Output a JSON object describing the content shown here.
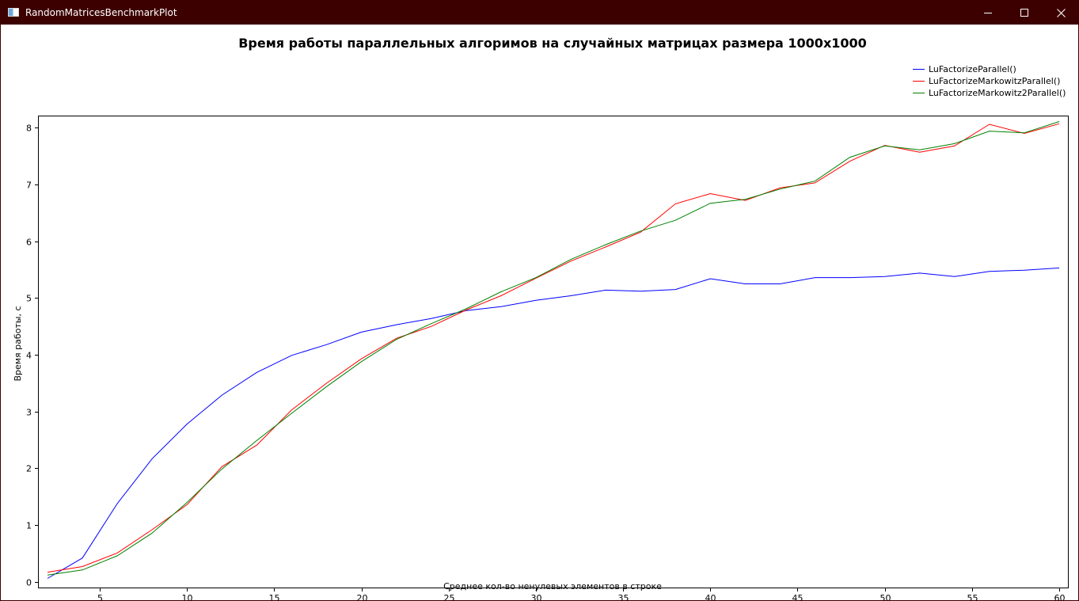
{
  "window": {
    "title": "RandomMatricesBenchmarkPlot",
    "icon": "app-window-icon",
    "controls": {
      "minimize_icon": "minimize-icon",
      "maximize_icon": "maximize-icon",
      "close_icon": "close-icon"
    },
    "titlebar_color": "#3d0000"
  },
  "chart_data": {
    "type": "line",
    "title": "Время работы параллельных алгоримов на случайных матрицах размера 1000x1000",
    "xlabel": "Среднее кол-во ненулевых элементов в строке",
    "ylabel": "Время работы, с",
    "xlim": [
      1.5,
      60.5
    ],
    "ylim": [
      -0.1,
      8.2
    ],
    "xticks": [
      5,
      10,
      15,
      20,
      25,
      30,
      35,
      40,
      45,
      50,
      55,
      60
    ],
    "yticks": [
      0,
      1,
      2,
      3,
      4,
      5,
      6,
      7,
      8
    ],
    "grid": false,
    "legend_position": "top-right",
    "x": [
      2,
      4,
      6,
      8,
      10,
      12,
      14,
      16,
      18,
      20,
      22,
      24,
      26,
      28,
      30,
      32,
      34,
      36,
      38,
      40,
      42,
      44,
      46,
      48,
      50,
      52,
      54,
      56,
      58,
      60
    ],
    "series": [
      {
        "name": "LuFactorizeParallel()",
        "color": "#0000ff",
        "values": [
          0.06,
          0.42,
          1.38,
          2.17,
          2.78,
          3.29,
          3.69,
          3.99,
          4.18,
          4.4,
          4.53,
          4.64,
          4.78,
          4.85,
          4.96,
          5.04,
          5.14,
          5.12,
          5.15,
          5.34,
          5.25,
          5.25,
          5.36,
          5.36,
          5.38,
          5.44,
          5.38,
          5.47,
          5.49,
          5.53
        ]
      },
      {
        "name": "LuFactorizeMarkowitzParallel()",
        "color": "#ff0000",
        "values": [
          0.17,
          0.27,
          0.51,
          0.92,
          1.36,
          2.03,
          2.41,
          3.03,
          3.5,
          3.93,
          4.29,
          4.5,
          4.79,
          5.04,
          5.35,
          5.65,
          5.9,
          6.16,
          6.66,
          6.84,
          6.72,
          6.94,
          7.03,
          7.41,
          7.69,
          7.57,
          7.68,
          8.06,
          7.9,
          8.07
        ]
      },
      {
        "name": "LuFactorizeMarkowitz2Parallel()",
        "color": "#008000",
        "values": [
          0.12,
          0.21,
          0.46,
          0.86,
          1.4,
          1.99,
          2.49,
          2.97,
          3.44,
          3.88,
          4.27,
          4.55,
          4.81,
          5.11,
          5.36,
          5.68,
          5.94,
          6.18,
          6.37,
          6.67,
          6.74,
          6.92,
          7.06,
          7.48,
          7.68,
          7.61,
          7.72,
          7.94,
          7.91,
          8.11
        ]
      }
    ]
  }
}
